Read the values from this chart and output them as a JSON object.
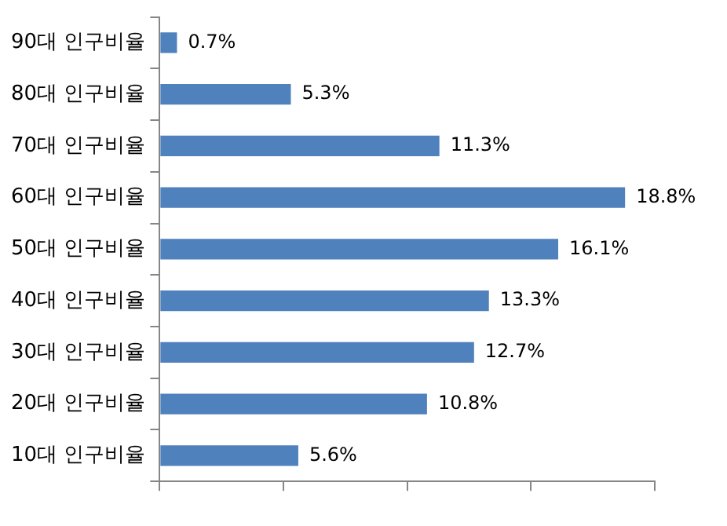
{
  "chart_data": {
    "type": "bar",
    "orientation": "horizontal",
    "categories": [
      "90대 인구비율",
      "80대 인구비율",
      "70대 인구비율",
      "60대 인구비율",
      "50대 인구비율",
      "40대 인구비율",
      "30대 인구비율",
      "20대 인구비율",
      "10대 인구비율"
    ],
    "values": [
      0.7,
      5.3,
      11.3,
      18.8,
      16.1,
      13.3,
      12.7,
      10.8,
      5.6
    ],
    "value_labels": [
      "0.7%",
      "5.3%",
      "11.3%",
      "18.8%",
      "16.1%",
      "13.3%",
      "12.7%",
      "10.8%",
      "5.6%"
    ],
    "color": "#4f81bd",
    "xlim": [
      0,
      20
    ],
    "xticks": [
      {
        "value": 0,
        "label": null
      },
      {
        "value": 5,
        "label": null
      },
      {
        "value": 10,
        "label": null
      },
      {
        "value": 15,
        "label": null
      },
      {
        "value": 20,
        "label": null
      }
    ],
    "tick_labels": "y",
    "grid": false,
    "legend": false
  }
}
